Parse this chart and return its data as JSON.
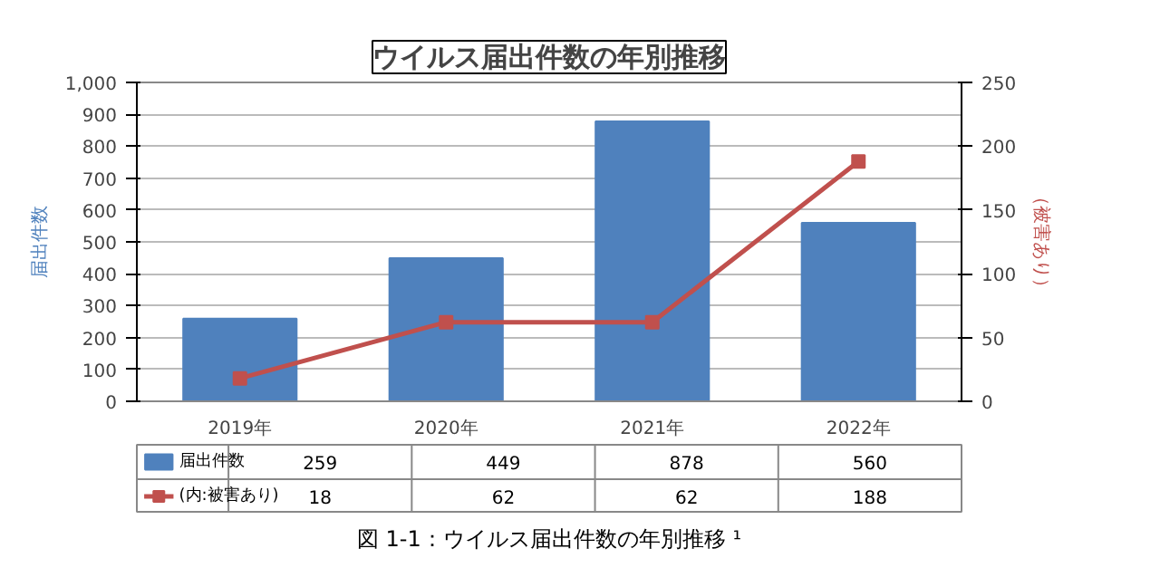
{
  "chart_data": {
    "type": "bar",
    "title": "ウイルス届出件数の年別推移",
    "ylabel": "届出件数",
    "y2label": "（被害あり）",
    "categories": [
      "2019年",
      "2020年",
      "2021年",
      "2022年"
    ],
    "series": [
      {
        "name": "届出件数",
        "color": "#4f81bd",
        "values": [
          259,
          449,
          878,
          560
        ]
      },
      {
        "name": "(内:被害あり)",
        "type": "line",
        "axis": "y2",
        "color": "#c0504d",
        "marker": "square",
        "values": [
          18,
          62,
          62,
          188
        ]
      }
    ],
    "ylim": [
      0,
      1000
    ],
    "yticks": [
      0,
      100,
      200,
      300,
      400,
      500,
      600,
      700,
      800,
      900,
      {
        "value": 1000,
        "label": "1,000"
      }
    ],
    "y2lim": [
      0,
      250
    ],
    "y2ticks": [
      0,
      50,
      100,
      150,
      200,
      250
    ],
    "grid": "y",
    "legend": "bottom",
    "data_labels": true,
    "annotations": [
      "図 1-1：ウイルス届出件数の年別推移 ¹"
    ]
  }
}
